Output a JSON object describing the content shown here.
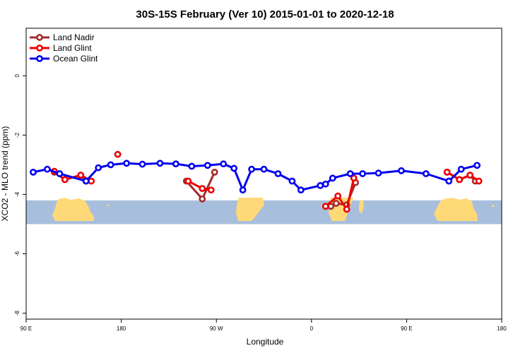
{
  "chart_data": {
    "type": "line",
    "title": "30S-15S February (Ver 10)   2015-01-01 to 2020-12-18",
    "xlabel": "Longitude",
    "ylabel": "XCO2 - MLO trend (ppm)",
    "xlim": [
      45,
      315
    ],
    "ylim": [
      -8.2,
      1.6
    ],
    "x_ticks": [
      {
        "value": 45,
        "label": "90 E"
      },
      {
        "value": 99,
        "label": "180"
      },
      {
        "value": 153,
        "label": "90 W"
      },
      {
        "value": 207,
        "label": "0"
      },
      {
        "value": 261,
        "label": "90 E"
      },
      {
        "value": 315,
        "label": "180"
      }
    ],
    "y_ticks": [
      {
        "value": 0,
        "label": "0"
      },
      {
        "value": -2,
        "label": "-2"
      },
      {
        "value": -4,
        "label": "-4"
      },
      {
        "value": -6,
        "label": "-6"
      },
      {
        "value": -8,
        "label": "-8"
      }
    ],
    "map_strip": {
      "y_top": -4.2,
      "y_bottom": -5.0,
      "ocean_color": "#a8bedd",
      "land_color": "#ffd977"
    },
    "legend_position": "top-left",
    "series": [
      {
        "name": "Land Nadir",
        "color": "#a52a2a",
        "segments": [
          [
            [
              61,
              -3.25
            ],
            [
              67,
              -3.5
            ],
            [
              76,
              -3.35
            ],
            [
              79,
              -3.55
            ]
          ],
          [
            [
              136,
              -3.55
            ],
            [
              145,
              -4.15
            ],
            [
              152,
              -3.25
            ]
          ],
          [
            [
              218,
              -4.4
            ],
            [
              221,
              -4.3
            ],
            [
              227,
              -4.35
            ],
            [
              232,
              -3.6
            ]
          ],
          [
            [
              284,
              -3.25
            ],
            [
              291,
              -3.5
            ],
            [
              297,
              -3.35
            ],
            [
              300,
              -3.55
            ]
          ]
        ]
      },
      {
        "name": "Land Glint",
        "color": "#ee0000",
        "segments": [
          [
            [
              61,
              -3.22
            ],
            [
              67,
              -3.5
            ],
            [
              76,
              -3.35
            ],
            [
              82,
              -3.55
            ]
          ],
          [
            [
              97,
              -2.65
            ]
          ],
          [
            [
              137,
              -3.55
            ],
            [
              145,
              -3.8
            ],
            [
              150,
              -3.85
            ]
          ],
          [
            [
              215,
              -4.4
            ],
            [
              222,
              -4.05
            ],
            [
              227,
              -4.5
            ],
            [
              231,
              -3.45
            ]
          ],
          [
            [
              284,
              -3.25
            ],
            [
              291,
              -3.5
            ],
            [
              297,
              -3.35
            ],
            [
              302,
              -3.55
            ]
          ]
        ]
      },
      {
        "name": "Ocean Glint",
        "color": "#0000ee",
        "segments": [
          [
            [
              49,
              -3.25
            ],
            [
              57,
              -3.15
            ],
            [
              64,
              -3.3
            ],
            [
              79,
              -3.55
            ],
            [
              86,
              -3.1
            ],
            [
              93,
              -3.0
            ],
            [
              102,
              -2.95
            ],
            [
              111,
              -2.98
            ],
            [
              121,
              -2.95
            ],
            [
              130,
              -2.97
            ],
            [
              139,
              -3.05
            ],
            [
              148,
              -3.02
            ],
            [
              157,
              -2.97
            ],
            [
              163,
              -3.12
            ],
            [
              168,
              -3.85
            ],
            [
              173,
              -3.15
            ],
            [
              180,
              -3.15
            ],
            [
              188,
              -3.3
            ],
            [
              196,
              -3.55
            ],
            [
              201,
              -3.85
            ],
            [
              212,
              -3.7
            ],
            [
              215,
              -3.65
            ],
            [
              219,
              -3.45
            ],
            [
              229,
              -3.3
            ],
            [
              236,
              -3.3
            ],
            [
              245,
              -3.28
            ],
            [
              258,
              -3.2
            ],
            [
              272,
              -3.3
            ],
            [
              285,
              -3.55
            ],
            [
              292,
              -3.15
            ],
            [
              301,
              -3.02
            ]
          ]
        ]
      }
    ]
  }
}
